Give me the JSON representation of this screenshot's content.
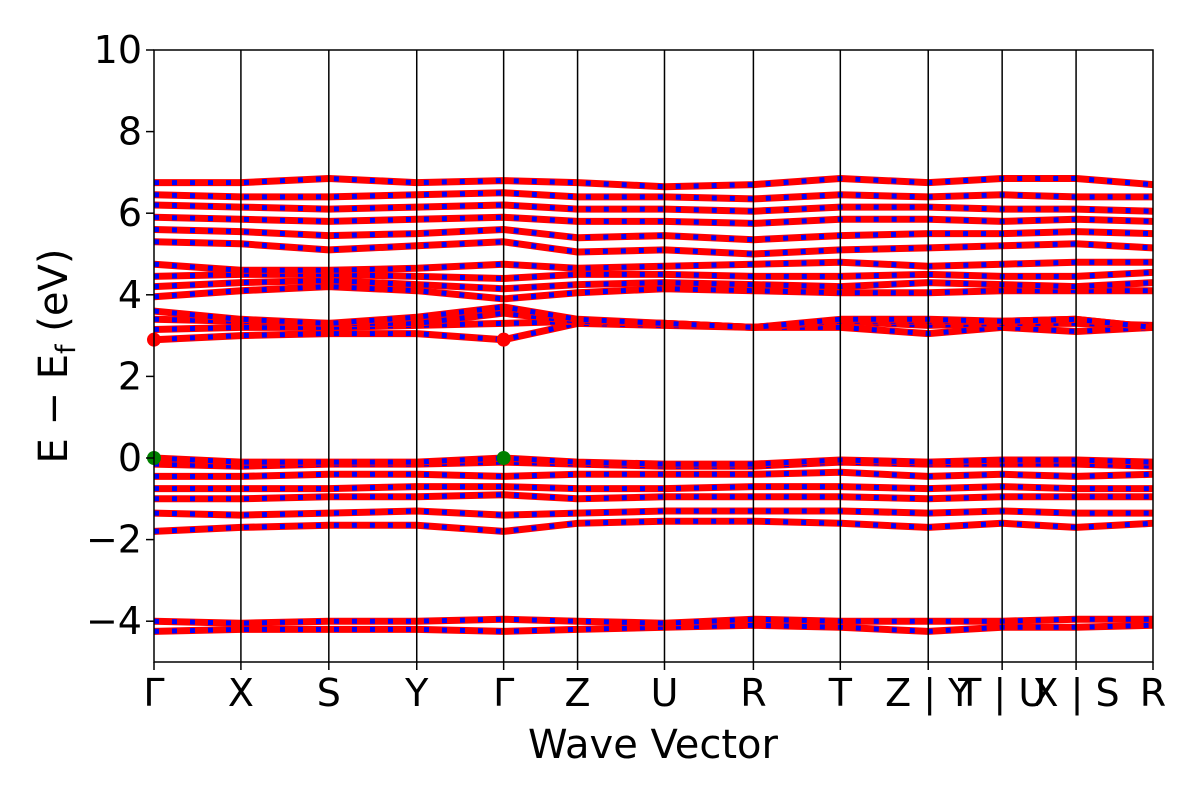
{
  "chart_data": {
    "type": "line",
    "title": "",
    "xlabel": "Wave Vector",
    "ylabel_main": "E − E",
    "ylabel_sub": "f",
    "ylabel_unit": " (eV)",
    "ylim": [
      -5,
      10
    ],
    "yticks": [
      {
        "value": 10,
        "label": "10"
      },
      {
        "value": 8,
        "label": "8"
      },
      {
        "value": 6,
        "label": "6"
      },
      {
        "value": 4,
        "label": "4"
      },
      {
        "value": 2,
        "label": "2"
      },
      {
        "value": 0,
        "label": "0"
      },
      {
        "value": -2,
        "label": "−2"
      },
      {
        "value": -4,
        "label": "−4"
      }
    ],
    "kpath": [
      {
        "x": 0.0,
        "label": "Γ"
      },
      {
        "x": 0.087,
        "label": "X"
      },
      {
        "x": 0.175,
        "label": "S"
      },
      {
        "x": 0.263,
        "label": "Y"
      },
      {
        "x": 0.35,
        "label": "Γ"
      },
      {
        "x": 0.424,
        "label": "Z"
      },
      {
        "x": 0.511,
        "label": "U"
      },
      {
        "x": 0.6,
        "label": "R"
      },
      {
        "x": 0.687,
        "label": "T"
      },
      {
        "x": 0.775,
        "label": "Z | Y"
      },
      {
        "x": 0.849,
        "label": "T | U"
      },
      {
        "x": 0.923,
        "label": "X | S"
      },
      {
        "x": 1.0,
        "label": "R"
      }
    ],
    "xlim": [
      0,
      1
    ],
    "grid": false,
    "band_colors": {
      "spin_up": "#ff0000",
      "spin_down": "#0000ff"
    },
    "bands": [
      {
        "name": "",
        "x": [
          0,
          0.087,
          0.175,
          0.263,
          0.35,
          0.424,
          0.511,
          0.6,
          0.687,
          0.775,
          0.849,
          0.923,
          1.0
        ],
        "y": [
          -4.25,
          -4.2,
          -4.2,
          -4.2,
          -4.25,
          -4.2,
          -4.15,
          -4.1,
          -4.15,
          -4.25,
          -4.15,
          -4.15,
          -4.1
        ]
      },
      {
        "name": "",
        "x": [
          0,
          0.087,
          0.175,
          0.263,
          0.35,
          0.424,
          0.511,
          0.6,
          0.687,
          0.775,
          0.849,
          0.923,
          1.0
        ],
        "y": [
          -4.0,
          -4.05,
          -4.0,
          -4.0,
          -3.95,
          -4.0,
          -4.05,
          -3.95,
          -4.0,
          -4.0,
          -4.0,
          -3.95,
          -3.95
        ]
      },
      {
        "name": "",
        "x": [
          0,
          0.087,
          0.175,
          0.263,
          0.35,
          0.424,
          0.511,
          0.6,
          0.687,
          0.775,
          0.849,
          0.923,
          1.0
        ],
        "y": [
          -1.8,
          -1.7,
          -1.65,
          -1.65,
          -1.8,
          -1.6,
          -1.55,
          -1.55,
          -1.6,
          -1.7,
          -1.6,
          -1.7,
          -1.6
        ]
      },
      {
        "name": "",
        "x": [
          0,
          0.087,
          0.175,
          0.263,
          0.35,
          0.424,
          0.511,
          0.6,
          0.687,
          0.775,
          0.849,
          0.923,
          1.0
        ],
        "y": [
          -1.35,
          -1.4,
          -1.35,
          -1.3,
          -1.4,
          -1.35,
          -1.3,
          -1.3,
          -1.3,
          -1.35,
          -1.3,
          -1.35,
          -1.35
        ]
      },
      {
        "name": "",
        "x": [
          0,
          0.087,
          0.175,
          0.263,
          0.35,
          0.424,
          0.511,
          0.6,
          0.687,
          0.775,
          0.849,
          0.923,
          1.0
        ],
        "y": [
          -1.0,
          -1.0,
          -0.95,
          -0.95,
          -0.9,
          -1.0,
          -0.95,
          -0.95,
          -0.95,
          -1.0,
          -0.95,
          -0.95,
          -0.95
        ]
      },
      {
        "name": "",
        "x": [
          0,
          0.087,
          0.175,
          0.263,
          0.35,
          0.424,
          0.511,
          0.6,
          0.687,
          0.775,
          0.849,
          0.923,
          1.0
        ],
        "y": [
          -0.75,
          -0.75,
          -0.75,
          -0.7,
          -0.7,
          -0.75,
          -0.75,
          -0.7,
          -0.7,
          -0.75,
          -0.7,
          -0.75,
          -0.75
        ]
      },
      {
        "name": "",
        "x": [
          0,
          0.087,
          0.175,
          0.263,
          0.35,
          0.424,
          0.511,
          0.6,
          0.687,
          0.775,
          0.849,
          0.923,
          1.0
        ],
        "y": [
          -0.45,
          -0.45,
          -0.4,
          -0.4,
          -0.45,
          -0.4,
          -0.4,
          -0.4,
          -0.35,
          -0.45,
          -0.4,
          -0.45,
          -0.4
        ]
      },
      {
        "name": "",
        "x": [
          0,
          0.087,
          0.175,
          0.263,
          0.35,
          0.424,
          0.511,
          0.6,
          0.687,
          0.775,
          0.849,
          0.923,
          1.0
        ],
        "y": [
          -0.15,
          -0.2,
          -0.15,
          -0.15,
          -0.1,
          -0.15,
          -0.2,
          -0.2,
          -0.1,
          -0.15,
          -0.15,
          -0.15,
          -0.2
        ]
      },
      {
        "name": "",
        "x": [
          0,
          0.087,
          0.175,
          0.263,
          0.35,
          0.424,
          0.511,
          0.6,
          0.687,
          0.775,
          0.849,
          0.923,
          1.0
        ],
        "y": [
          0.0,
          -0.1,
          -0.1,
          -0.1,
          0.0,
          -0.1,
          -0.15,
          -0.15,
          -0.05,
          -0.1,
          -0.05,
          -0.05,
          -0.1
        ]
      },
      {
        "name": "",
        "x": [
          0,
          0.087,
          0.175,
          0.263,
          0.35,
          0.424,
          0.511,
          0.6,
          0.687,
          0.775,
          0.849,
          0.923,
          1.0
        ],
        "y": [
          2.9,
          3.0,
          3.05,
          3.05,
          2.9,
          3.3,
          3.25,
          3.2,
          3.2,
          3.05,
          3.2,
          3.1,
          3.2
        ]
      },
      {
        "name": "",
        "x": [
          0,
          0.087,
          0.175,
          0.263,
          0.35,
          0.424,
          0.511,
          0.6,
          0.687,
          0.775,
          0.849,
          0.923,
          1.0
        ],
        "y": [
          3.15,
          3.2,
          3.2,
          3.25,
          3.3,
          3.35,
          3.3,
          3.2,
          3.35,
          3.25,
          3.3,
          3.3,
          3.25
        ]
      },
      {
        "name": "",
        "x": [
          0,
          0.087,
          0.175,
          0.263,
          0.35,
          0.424,
          0.511,
          0.6,
          0.687,
          0.775,
          0.849,
          0.923,
          1.0
        ],
        "y": [
          3.4,
          3.35,
          3.3,
          3.3,
          3.55,
          3.35,
          3.3,
          3.2,
          3.35,
          3.35,
          3.35,
          3.4,
          3.2
        ]
      },
      {
        "name": "",
        "x": [
          0,
          0.087,
          0.175,
          0.263,
          0.35,
          0.424,
          0.511,
          0.6,
          0.687,
          0.775,
          0.849,
          0.923,
          1.0
        ],
        "y": [
          3.6,
          3.4,
          3.3,
          3.45,
          3.7,
          3.4,
          3.3,
          3.2,
          3.4,
          3.4,
          3.35,
          3.4,
          3.2
        ]
      },
      {
        "name": "",
        "x": [
          0,
          0.087,
          0.175,
          0.263,
          0.35,
          0.424,
          0.511,
          0.6,
          0.687,
          0.775,
          0.849,
          0.923,
          1.0
        ],
        "y": [
          3.95,
          4.1,
          4.2,
          4.1,
          3.9,
          4.05,
          4.15,
          4.1,
          4.05,
          4.05,
          4.1,
          4.1,
          4.1
        ]
      },
      {
        "name": "",
        "x": [
          0,
          0.087,
          0.175,
          0.263,
          0.35,
          0.424,
          0.511,
          0.6,
          0.687,
          0.775,
          0.849,
          0.923,
          1.0
        ],
        "y": [
          4.2,
          4.3,
          4.35,
          4.25,
          4.15,
          4.25,
          4.3,
          4.25,
          4.2,
          4.3,
          4.25,
          4.2,
          4.3
        ]
      },
      {
        "name": "",
        "x": [
          0,
          0.087,
          0.175,
          0.263,
          0.35,
          0.424,
          0.511,
          0.6,
          0.687,
          0.775,
          0.849,
          0.923,
          1.0
        ],
        "y": [
          4.45,
          4.5,
          4.5,
          4.45,
          4.4,
          4.5,
          4.5,
          4.45,
          4.45,
          4.5,
          4.45,
          4.45,
          4.55
        ]
      },
      {
        "name": "",
        "x": [
          0,
          0.087,
          0.175,
          0.263,
          0.35,
          0.424,
          0.511,
          0.6,
          0.687,
          0.775,
          0.849,
          0.923,
          1.0
        ],
        "y": [
          4.75,
          4.6,
          4.6,
          4.65,
          4.75,
          4.65,
          4.7,
          4.75,
          4.8,
          4.7,
          4.75,
          4.8,
          4.8
        ]
      },
      {
        "name": "",
        "x": [
          0,
          0.087,
          0.175,
          0.263,
          0.35,
          0.424,
          0.511,
          0.6,
          0.687,
          0.775,
          0.849,
          0.923,
          1.0
        ],
        "y": [
          5.3,
          5.25,
          5.1,
          5.2,
          5.3,
          5.05,
          5.1,
          5.0,
          5.1,
          5.15,
          5.2,
          5.25,
          5.15
        ]
      },
      {
        "name": "",
        "x": [
          0,
          0.087,
          0.175,
          0.263,
          0.35,
          0.424,
          0.511,
          0.6,
          0.687,
          0.775,
          0.849,
          0.923,
          1.0
        ],
        "y": [
          5.6,
          5.55,
          5.45,
          5.5,
          5.6,
          5.4,
          5.45,
          5.35,
          5.45,
          5.5,
          5.5,
          5.55,
          5.5
        ]
      },
      {
        "name": "",
        "x": [
          0,
          0.087,
          0.175,
          0.263,
          0.35,
          0.424,
          0.511,
          0.6,
          0.687,
          0.775,
          0.849,
          0.923,
          1.0
        ],
        "y": [
          5.9,
          5.85,
          5.8,
          5.85,
          5.9,
          5.8,
          5.8,
          5.75,
          5.85,
          5.85,
          5.8,
          5.85,
          5.8
        ]
      },
      {
        "name": "",
        "x": [
          0,
          0.087,
          0.175,
          0.263,
          0.35,
          0.424,
          0.511,
          0.6,
          0.687,
          0.775,
          0.849,
          0.923,
          1.0
        ],
        "y": [
          6.2,
          6.15,
          6.1,
          6.15,
          6.2,
          6.1,
          6.1,
          6.05,
          6.15,
          6.15,
          6.1,
          6.1,
          6.05
        ]
      },
      {
        "name": "",
        "x": [
          0,
          0.087,
          0.175,
          0.263,
          0.35,
          0.424,
          0.511,
          0.6,
          0.687,
          0.775,
          0.849,
          0.923,
          1.0
        ],
        "y": [
          6.45,
          6.4,
          6.4,
          6.45,
          6.5,
          6.4,
          6.4,
          6.35,
          6.45,
          6.4,
          6.45,
          6.4,
          6.4
        ]
      },
      {
        "name": "",
        "x": [
          0,
          0.087,
          0.175,
          0.263,
          0.35,
          0.424,
          0.511,
          0.6,
          0.687,
          0.775,
          0.849,
          0.923,
          1.0
        ],
        "y": [
          6.75,
          6.75,
          6.85,
          6.75,
          6.8,
          6.75,
          6.65,
          6.7,
          6.85,
          6.75,
          6.85,
          6.85,
          6.7
        ]
      }
    ],
    "markers": [
      {
        "x": 0.0,
        "y": 2.9,
        "color": "#ff0000"
      },
      {
        "x": 0.35,
        "y": 2.9,
        "color": "#ff0000"
      },
      {
        "x": 0.0,
        "y": 0.0,
        "color": "#008000"
      },
      {
        "x": 0.35,
        "y": 0.0,
        "color": "#008000"
      }
    ]
  }
}
